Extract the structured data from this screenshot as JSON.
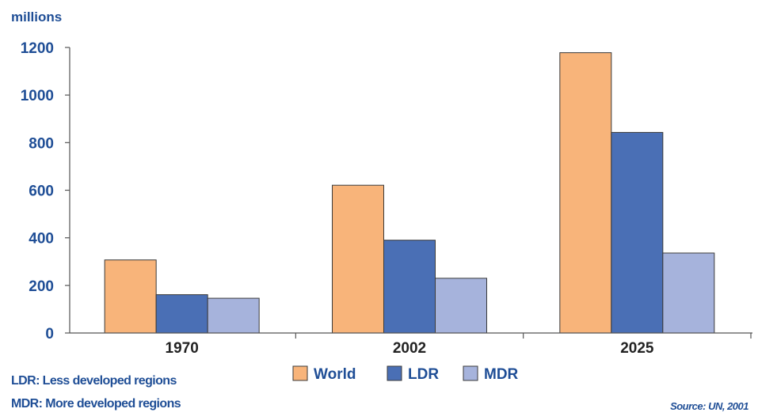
{
  "chart_data": {
    "type": "bar",
    "ylabel": "millions",
    "categories": [
      "1970",
      "2002",
      "2025"
    ],
    "series": [
      {
        "name": "World",
        "values": [
          307,
          621,
          1178
        ],
        "color": "#f8b47a"
      },
      {
        "name": "LDR",
        "values": [
          161,
          390,
          843
        ],
        "color": "#4a6fb5"
      },
      {
        "name": "MDR",
        "values": [
          146,
          230,
          336
        ],
        "color": "#a6b3dc"
      }
    ],
    "ylim": [
      0,
      1200
    ],
    "yticks": [
      0,
      200,
      400,
      600,
      800,
      1000,
      1200
    ],
    "grid": false,
    "legend_position": "bottom-center"
  },
  "notes": {
    "ldr": "LDR: Less developed regions",
    "mdr": "MDR: More developed regions",
    "source": "Source: UN, 2001"
  }
}
